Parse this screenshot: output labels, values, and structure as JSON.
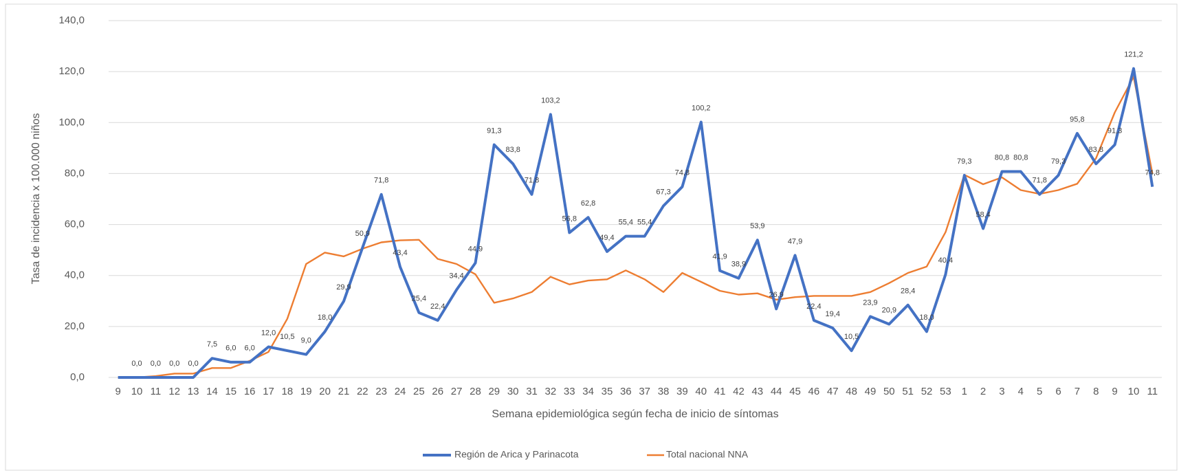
{
  "chart_data": {
    "type": "line",
    "y_label": "Tasa de incidencia x 100.000 niños",
    "x_label": "Semana epidemiológica según fecha de inicio de síntomas",
    "categories": [
      "9",
      "10",
      "11",
      "12",
      "13",
      "14",
      "15",
      "16",
      "17",
      "18",
      "19",
      "20",
      "21",
      "22",
      "23",
      "24",
      "25",
      "26",
      "27",
      "28",
      "29",
      "30",
      "31",
      "32",
      "33",
      "34",
      "35",
      "36",
      "37",
      "38",
      "39",
      "40",
      "41",
      "42",
      "43",
      "44",
      "45",
      "46",
      "47",
      "48",
      "49",
      "50",
      "51",
      "52",
      "53",
      "1",
      "2",
      "3",
      "4",
      "5",
      "6",
      "7",
      "8",
      "9",
      "10",
      "11"
    ],
    "series": [
      {
        "name": "Región de Arica y Parinacota",
        "color": "#4472c4",
        "values": [
          0,
          0,
          0,
          0,
          0,
          7.5,
          6,
          6,
          12,
          10.5,
          9,
          18,
          29.9,
          50.9,
          71.8,
          43.4,
          25.4,
          22.4,
          34.4,
          44.9,
          91.3,
          83.8,
          71.8,
          103.2,
          56.8,
          62.8,
          49.4,
          55.4,
          55.4,
          67.3,
          74.8,
          100.2,
          41.9,
          38.9,
          53.9,
          26.9,
          47.9,
          22.4,
          19.4,
          10.5,
          23.9,
          20.9,
          28.4,
          18,
          40.4,
          79.3,
          58.4,
          80.8,
          80.8,
          71.8,
          79.3,
          95.8,
          83.8,
          91.3,
          121.2,
          74.8
        ],
        "value_labels": [
          null,
          "0,0",
          "0,0",
          "0,0",
          "0,0",
          "7,5",
          "6,0",
          "6,0",
          "12,0",
          "10,5",
          "9,0",
          "18,0",
          "29,9",
          "50,9",
          "71,8",
          "43,4",
          "25,4",
          "22,4",
          "34,4",
          "44,9",
          "91,3",
          "83,8",
          "71,8",
          "103,2",
          "56,8",
          "62,8",
          "49,4",
          "55,4",
          "55,4",
          "67,3",
          "74,8",
          "100,2",
          "41,9",
          "38,9",
          "53,9",
          "26,9",
          "47,9",
          "22,4",
          "19,4",
          "10,5",
          "23,9",
          "20,9",
          "28,4",
          "18,0",
          "40,4",
          "79,3",
          "58,4",
          "80,8",
          "80,8",
          "71,8",
          "79,3",
          "95,8",
          "83,8",
          "91,3",
          "121,2",
          "74,8"
        ]
      },
      {
        "name": "Total nacional NNA",
        "color": "#ed7d31",
        "values": [
          0,
          0,
          0.5,
          1.5,
          1.5,
          3.7,
          3.7,
          6.5,
          10,
          23,
          44.5,
          49,
          47.5,
          50.5,
          53,
          53.8,
          54,
          46.5,
          44.5,
          40.5,
          29.3,
          31,
          33.5,
          39.5,
          36.5,
          38,
          38.5,
          42,
          38.5,
          33.5,
          41,
          37.5,
          34,
          32.5,
          33,
          30.5,
          31.5,
          32,
          32,
          32,
          33.5,
          37,
          41,
          43.5,
          57,
          79.5,
          75.8,
          78.5,
          73.5,
          72,
          73.5,
          76,
          86,
          104,
          118,
          80
        ]
      }
    ],
    "ylim": [
      0,
      140
    ],
    "yticks": [
      {
        "value": 0,
        "label": "0,0"
      },
      {
        "value": 20,
        "label": "20,0"
      },
      {
        "value": 40,
        "label": "40,0"
      },
      {
        "value": 60,
        "label": "60,0"
      },
      {
        "value": 80,
        "label": "80,0"
      },
      {
        "value": 100,
        "label": "100,0"
      },
      {
        "value": 120,
        "label": "120,0"
      },
      {
        "value": 140,
        "label": "140,0"
      }
    ],
    "grid": true
  }
}
